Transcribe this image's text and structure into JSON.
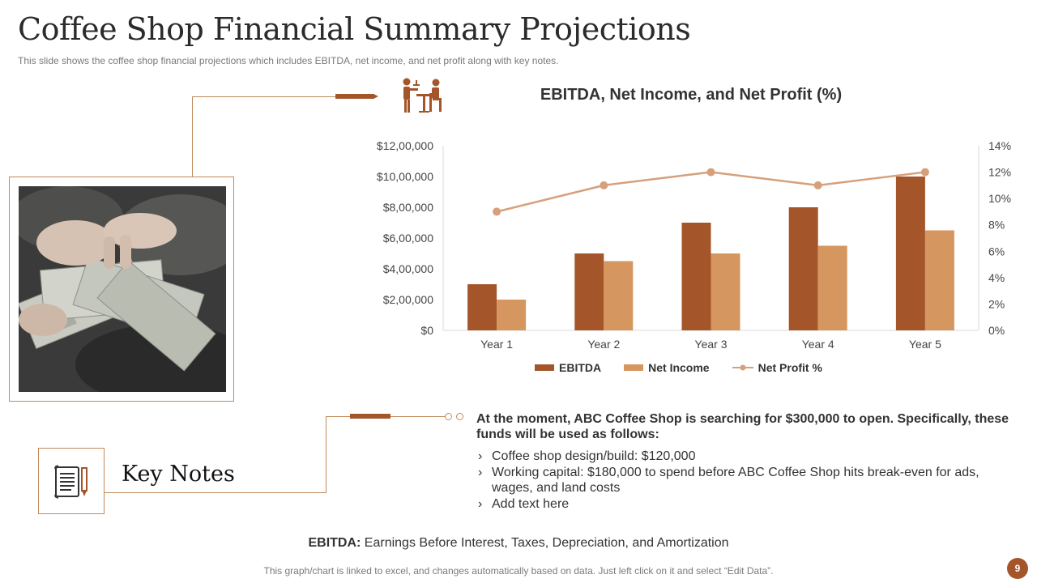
{
  "slide": {
    "title": "Coffee Shop Financial Summary Projections",
    "subtitle": "This slide shows the coffee shop financial projections which includes EBITDA,  net income, and net profit  along with key notes.",
    "page_number": "9",
    "footer": "This graph/chart is linked to excel, and changes automatically based on data. Just left click on it and select “Edit Data”."
  },
  "colors": {
    "accent": "#a4552a",
    "ebitda": "#a4552a",
    "net_income": "#d6965f",
    "net_profit_line": "#d6a07b",
    "connector": "#c08a5c"
  },
  "icons": {
    "header": "waiter-serving-table-icon",
    "key_notes": "document-with-pencil-icon",
    "photo": "hands-counting-cash-photo"
  },
  "chart_data": {
    "type": "bar",
    "title": "EBITDA, Net Income, and Net Profit (%)",
    "categories": [
      "Year 1",
      "Year 2",
      "Year 3",
      "Year 4",
      "Year 5"
    ],
    "series": [
      {
        "name": "EBITDA",
        "type": "bar",
        "axis": "left",
        "values": [
          300000,
          500000,
          700000,
          800000,
          1000000
        ]
      },
      {
        "name": "Net Income",
        "type": "bar",
        "axis": "left",
        "values": [
          200000,
          450000,
          500000,
          550000,
          650000
        ]
      },
      {
        "name": "Net Profit %",
        "type": "line",
        "axis": "right",
        "values": [
          9,
          11,
          12,
          11,
          12
        ]
      }
    ],
    "y_left": {
      "min": 0,
      "max": 1200000,
      "ticks": [
        "$0",
        "$2,00,000",
        "$4,00,000",
        "$6,00,000",
        "$8,00,000",
        "$10,00,000",
        "$12,00,000"
      ]
    },
    "y_right": {
      "min": 0,
      "max": 14,
      "ticks": [
        "0%",
        "2%",
        "4%",
        "6%",
        "8%",
        "10%",
        "12%",
        "14%"
      ]
    },
    "legend": [
      "EBITDA",
      "Net Income",
      "Net Profit %"
    ],
    "legend_position": "bottom",
    "grid": false
  },
  "key_notes": {
    "title": "Key Notes",
    "heading": "At the moment, ABC Coffee Shop is searching for $300,000 to open. Specifically, these funds will be used as follows:",
    "items": [
      "Coffee shop design/build: $120,000",
      "Working capital: $180,000 to spend before ABC Coffee Shop hits break-even for ads, wages, and land costs",
      "Add text here"
    ]
  },
  "definition": {
    "term": "EBITDA:",
    "text": " Earnings Before Interest,  Taxes,  Depreciation, and Amortization"
  }
}
